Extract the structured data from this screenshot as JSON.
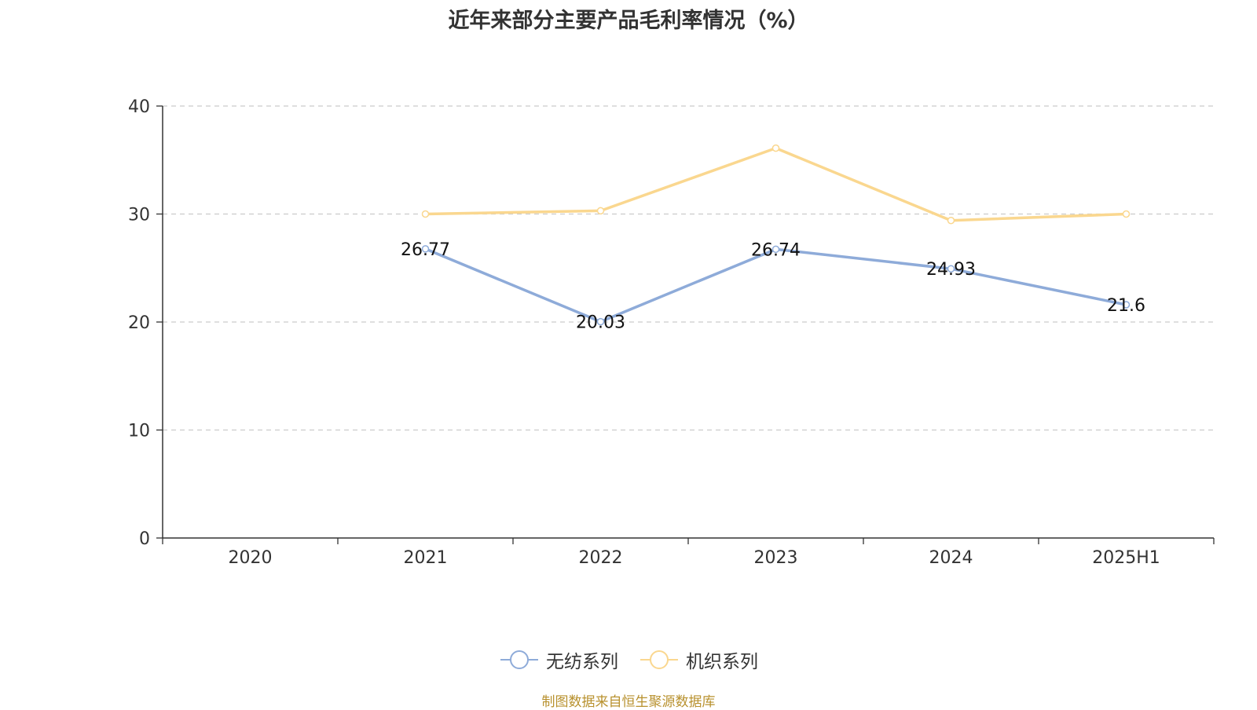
{
  "chart_data": {
    "type": "line",
    "title": "近年来部分主要产品毛利率情况（%）",
    "categories": [
      "2020",
      "2021",
      "2022",
      "2023",
      "2024",
      "2025H1"
    ],
    "ylim": [
      0,
      40
    ],
    "yticks": [
      0,
      10,
      20,
      30,
      40
    ],
    "grid": true,
    "legend_position": "bottom",
    "series": [
      {
        "name": "无纺系列",
        "color": "#8eabd9",
        "values": [
          null,
          26.77,
          20.03,
          26.74,
          24.93,
          21.6
        ],
        "labels": [
          "",
          "26.77",
          "20.03",
          "26.74",
          "24.93",
          "21.6"
        ]
      },
      {
        "name": "机织系列",
        "color": "#fad78f",
        "values": [
          null,
          30.0,
          30.3,
          36.1,
          29.4,
          30.0
        ],
        "labels": [
          "",
          "",
          "",
          "",
          "",
          ""
        ]
      }
    ]
  },
  "source_note": "制图数据来自恒生聚源数据库"
}
